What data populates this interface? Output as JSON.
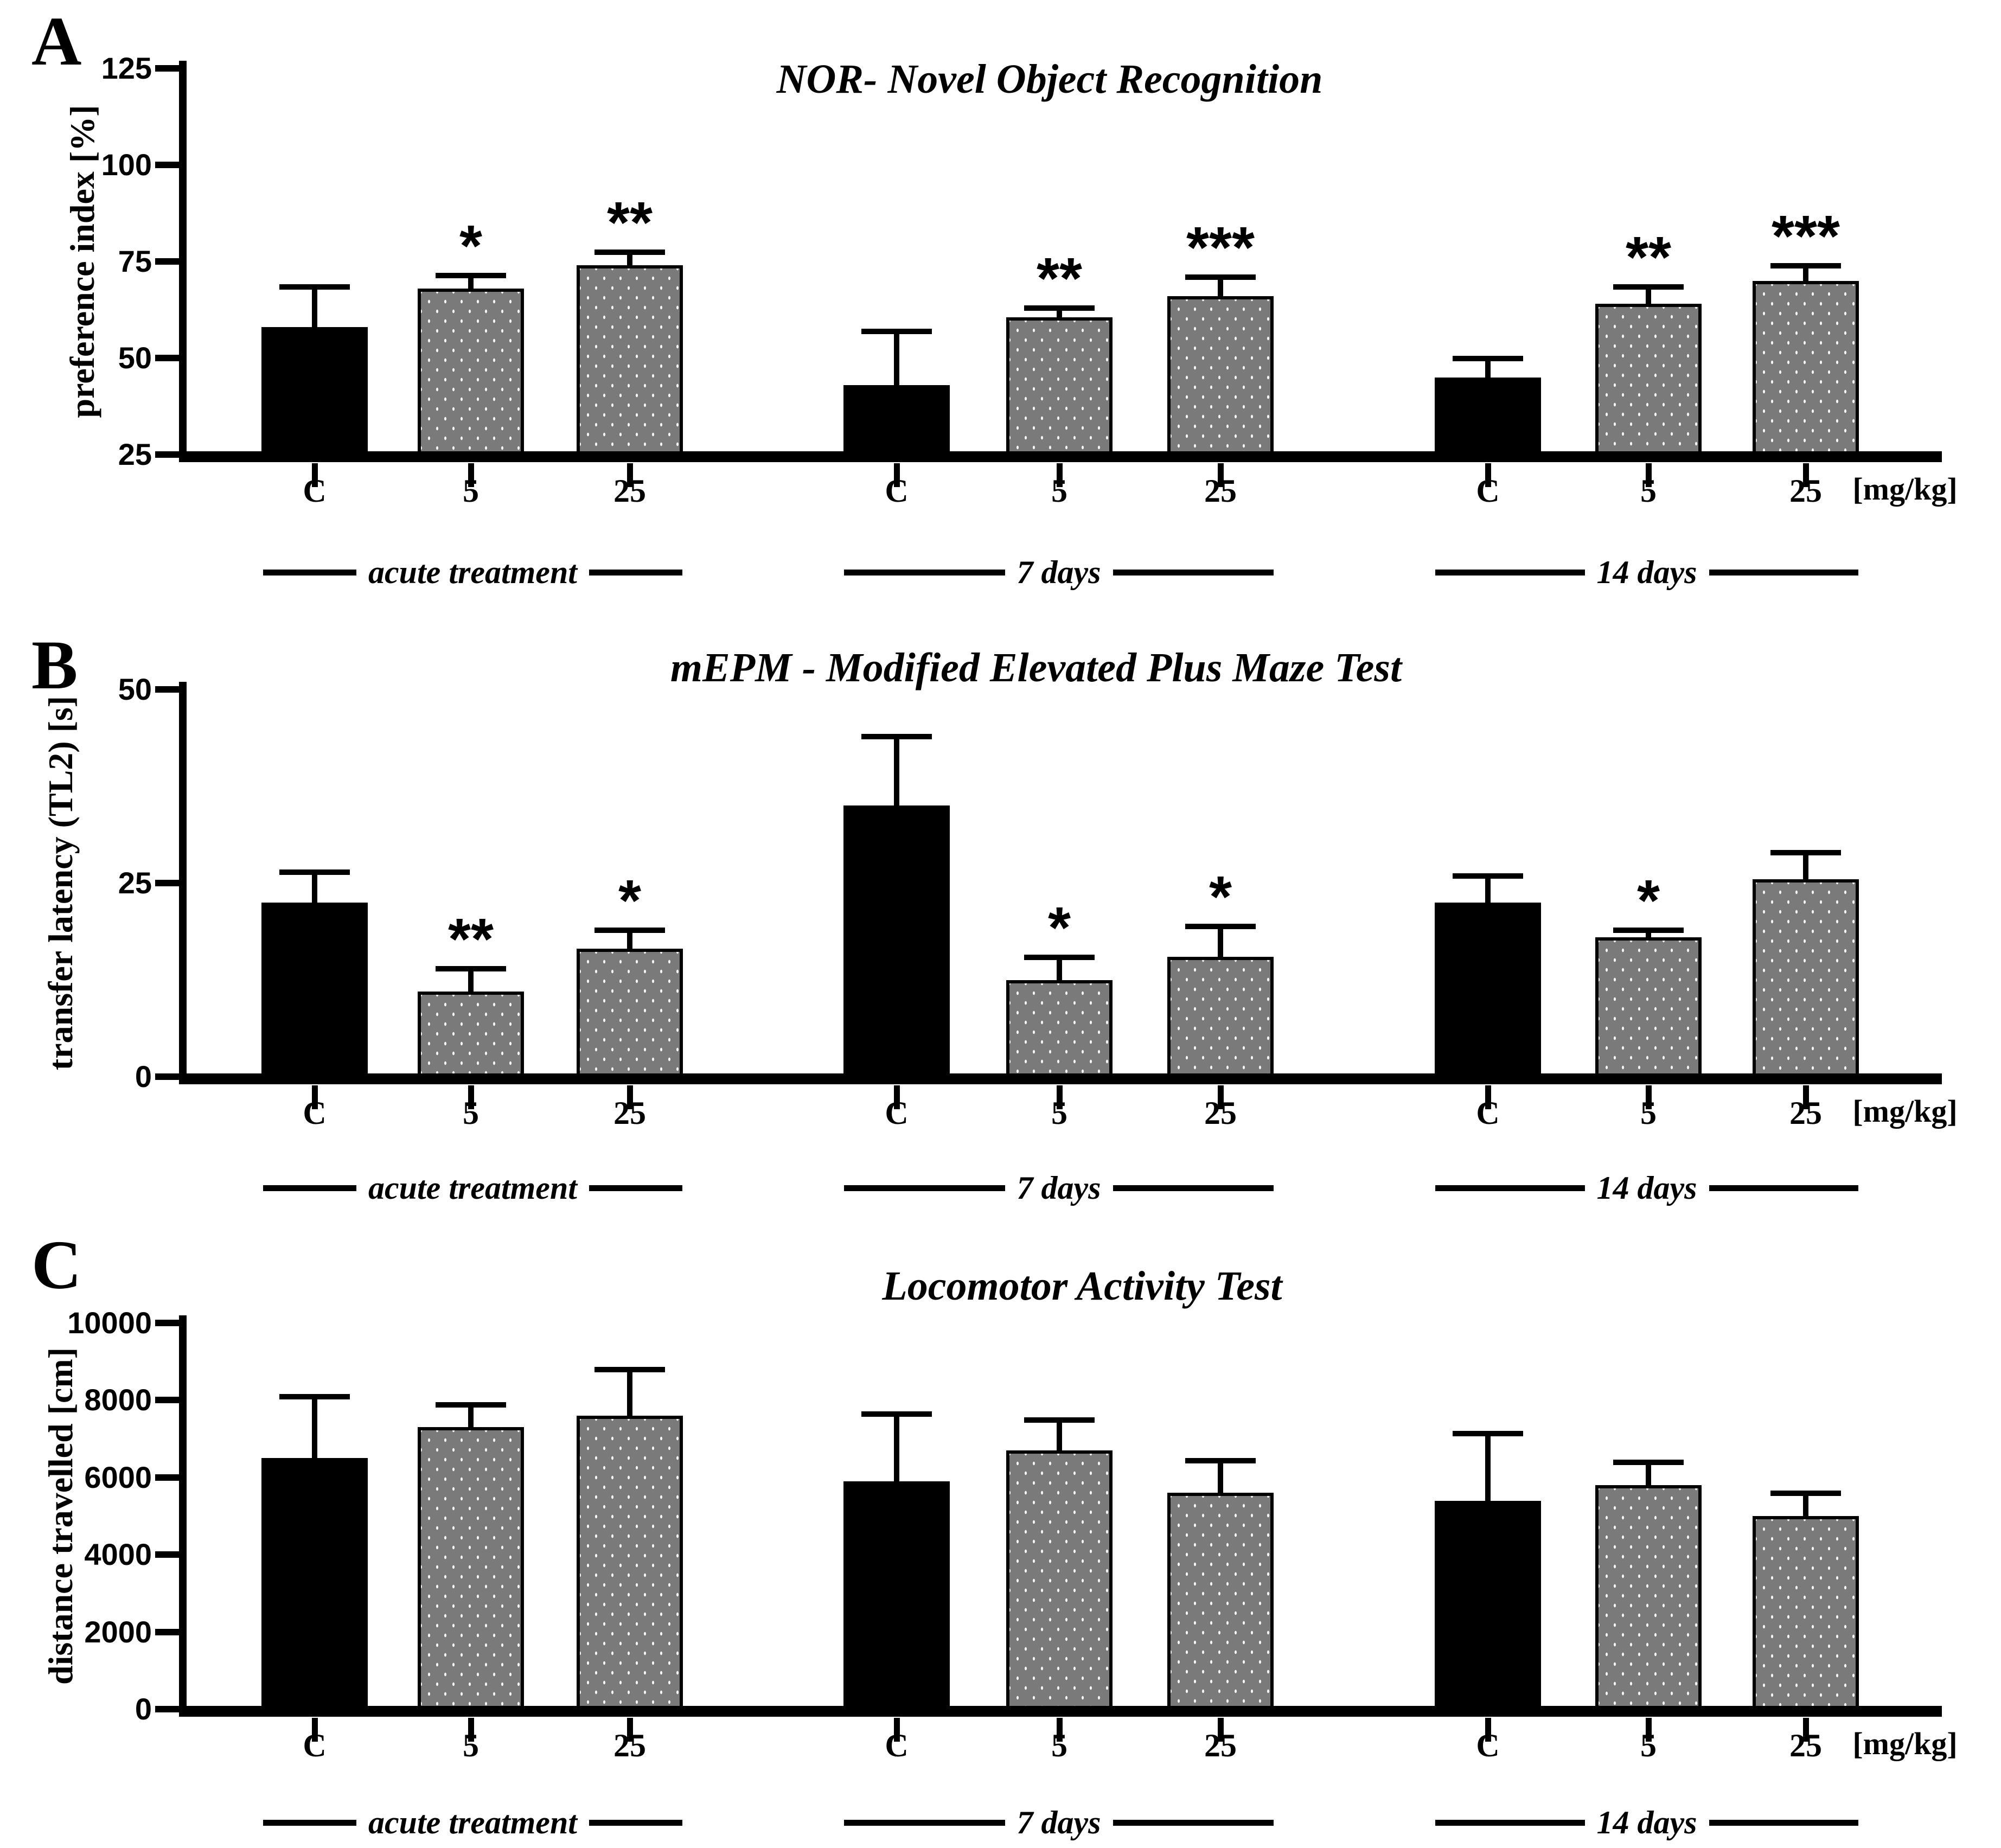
{
  "figure": {
    "unit_label": "[mg/kg]",
    "dose_labels": [
      "C",
      "5",
      "25"
    ],
    "group_labels": [
      "acute treatment",
      "7 days",
      "14 days"
    ],
    "colors": {
      "control_bar": "#000000",
      "treated_bar": "#7a7a7a",
      "treated_dots": "#ffffff",
      "axis": "#000000"
    }
  },
  "chart_data": [
    {
      "panel": "A",
      "type": "bar",
      "title": "NOR- Novel Object Recognition",
      "ylabel": "preference index [%]",
      "xlabel": "[mg/kg]",
      "ylim": [
        25,
        125
      ],
      "yticks": [
        25,
        50,
        75,
        100,
        125
      ],
      "categories": [
        "C",
        "5",
        "25"
      ],
      "legend": "none",
      "grid": false,
      "series": [
        {
          "group": "acute treatment",
          "values": [
            58,
            68,
            74
          ],
          "error_tops": [
            68.5,
            71.5,
            77.5
          ],
          "significance": [
            "",
            "*",
            "**"
          ]
        },
        {
          "group": "7 days",
          "values": [
            43,
            60.5,
            66
          ],
          "error_tops": [
            57,
            63,
            71
          ],
          "significance": [
            "",
            "**",
            "***"
          ]
        },
        {
          "group": "14 days",
          "values": [
            45,
            64,
            70
          ],
          "error_tops": [
            50,
            68.5,
            74
          ],
          "significance": [
            "",
            "**",
            "***"
          ]
        }
      ]
    },
    {
      "panel": "B",
      "type": "bar",
      "title": "mEPM - Modified Elevated Plus Maze Test",
      "ylabel": "transfer latency (TL2) [s]",
      "xlabel": "[mg/kg]",
      "ylim": [
        0,
        50
      ],
      "yticks": [
        0,
        25,
        50
      ],
      "categories": [
        "C",
        "5",
        "25"
      ],
      "legend": "none",
      "grid": false,
      "series": [
        {
          "group": "acute treatment",
          "values": [
            22.5,
            11,
            16.5
          ],
          "error_tops": [
            26.5,
            14,
            19
          ],
          "significance": [
            "",
            "**",
            "*"
          ]
        },
        {
          "group": "7 days",
          "values": [
            35,
            12.5,
            15.5
          ],
          "error_tops": [
            44,
            15.5,
            19.5
          ],
          "significance": [
            "",
            "*",
            "*"
          ]
        },
        {
          "group": "14 days",
          "values": [
            22.5,
            18,
            25.5
          ],
          "error_tops": [
            26,
            19,
            29
          ],
          "significance": [
            "",
            "*",
            ""
          ]
        }
      ]
    },
    {
      "panel": "C",
      "type": "bar",
      "title": "Locomotor Activity Test",
      "ylabel": "distance travelled [cm]",
      "xlabel": "[mg/kg]",
      "ylim": [
        0,
        10000
      ],
      "yticks": [
        0,
        2000,
        4000,
        6000,
        8000,
        10000
      ],
      "categories": [
        "C",
        "5",
        "25"
      ],
      "legend": "none",
      "grid": false,
      "series": [
        {
          "group": "acute treatment",
          "values": [
            6500,
            7300,
            7600
          ],
          "error_tops": [
            8100,
            7900,
            8800
          ],
          "significance": [
            "",
            "",
            ""
          ]
        },
        {
          "group": "7 days",
          "values": [
            5900,
            6700,
            5600
          ],
          "error_tops": [
            7650,
            7500,
            6450
          ],
          "significance": [
            "",
            "",
            ""
          ]
        },
        {
          "group": "14 days",
          "values": [
            5400,
            5800,
            5000
          ],
          "error_tops": [
            7150,
            6400,
            5600
          ],
          "significance": [
            "",
            "",
            ""
          ]
        }
      ]
    }
  ]
}
